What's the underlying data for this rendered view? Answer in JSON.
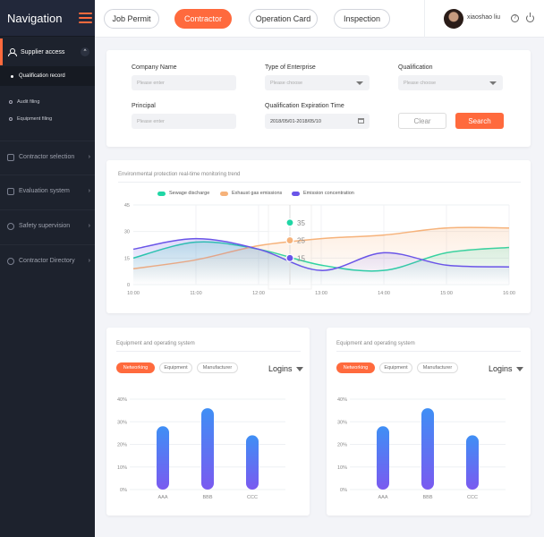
{
  "sidebar": {
    "title": "Navigation",
    "active_group": "Supplier access",
    "sub_items": [
      "Qualification record",
      "Audit filing",
      "Equipment filing"
    ],
    "sections": [
      "Contractor selection",
      "Evaluation system",
      "Safety supervision",
      "Contractor Directory"
    ]
  },
  "topbar": {
    "tabs": [
      "Job Permit",
      "Contractor",
      "Operation Card",
      "Inspection"
    ],
    "active_tab": "Contractor",
    "username": "xiaoshao liu"
  },
  "filters": {
    "company_name": {
      "label": "Company Name",
      "placeholder": "Please enter"
    },
    "enterprise_type": {
      "label": "Type of Enterprise",
      "placeholder": "Please choose"
    },
    "qualification": {
      "label": "Qualification",
      "placeholder": "Please choose"
    },
    "principal": {
      "label": "Principal",
      "placeholder": "Please enter"
    },
    "expiration": {
      "label": "Qualification Expiration Time",
      "value": "2018/05/01-2018/05/10"
    },
    "clear_label": "Clear",
    "search_label": "Search"
  },
  "colors": {
    "accent": "#ff6a3d",
    "sewage": "#20d6a5",
    "exhaust": "#f6b27a",
    "emission": "#6a55e8"
  },
  "line_chart": {
    "title": "Environmental protection real-time monitoring trend",
    "tooltip_values": [
      "35",
      "25",
      "15"
    ]
  },
  "bar_panels": [
    {
      "title": "Equipment and operating system",
      "pills": [
        "Networking",
        "Equipment",
        "Manufacturer"
      ],
      "active_pill": "Networking",
      "dropdown": "Logins"
    },
    {
      "title": "Equipment and operating system",
      "pills": [
        "Networking",
        "Equipment",
        "Manufacturer"
      ],
      "active_pill": "Networking",
      "dropdown": "Logins"
    }
  ],
  "chart_data": [
    {
      "type": "line",
      "title": "Environmental protection real-time monitoring trend",
      "x": [
        "10:00",
        "11:00",
        "12:00",
        "13:00",
        "14:00",
        "15:00",
        "16:00"
      ],
      "ylim": [
        0,
        45
      ],
      "yticks": [
        0,
        15,
        30,
        45
      ],
      "series": [
        {
          "name": "Sewage discharge",
          "values": [
            15,
            24,
            20,
            11,
            8,
            18,
            21
          ]
        },
        {
          "name": "Exhaust gas emissions",
          "values": [
            9,
            14,
            22,
            26,
            28,
            32,
            32
          ]
        },
        {
          "name": "Emission concentration",
          "values": [
            20,
            26,
            20,
            8,
            18,
            11,
            10
          ]
        }
      ],
      "tooltip": {
        "x": "12:30",
        "values": [
          35,
          25,
          15
        ]
      },
      "legend": "top-center",
      "grid": true
    },
    {
      "type": "bar",
      "categories": [
        "AAA",
        "BBB",
        "CCC"
      ],
      "values": [
        28,
        36,
        24
      ],
      "ylim": [
        0,
        40
      ],
      "yticks": [
        "0%",
        "10%",
        "20%",
        "30%",
        "40%"
      ]
    },
    {
      "type": "bar",
      "categories": [
        "AAA",
        "BBB",
        "CCC"
      ],
      "values": [
        28,
        36,
        24
      ],
      "ylim": [
        0,
        40
      ],
      "yticks": [
        "0%",
        "10%",
        "20%",
        "30%",
        "40%"
      ]
    }
  ]
}
